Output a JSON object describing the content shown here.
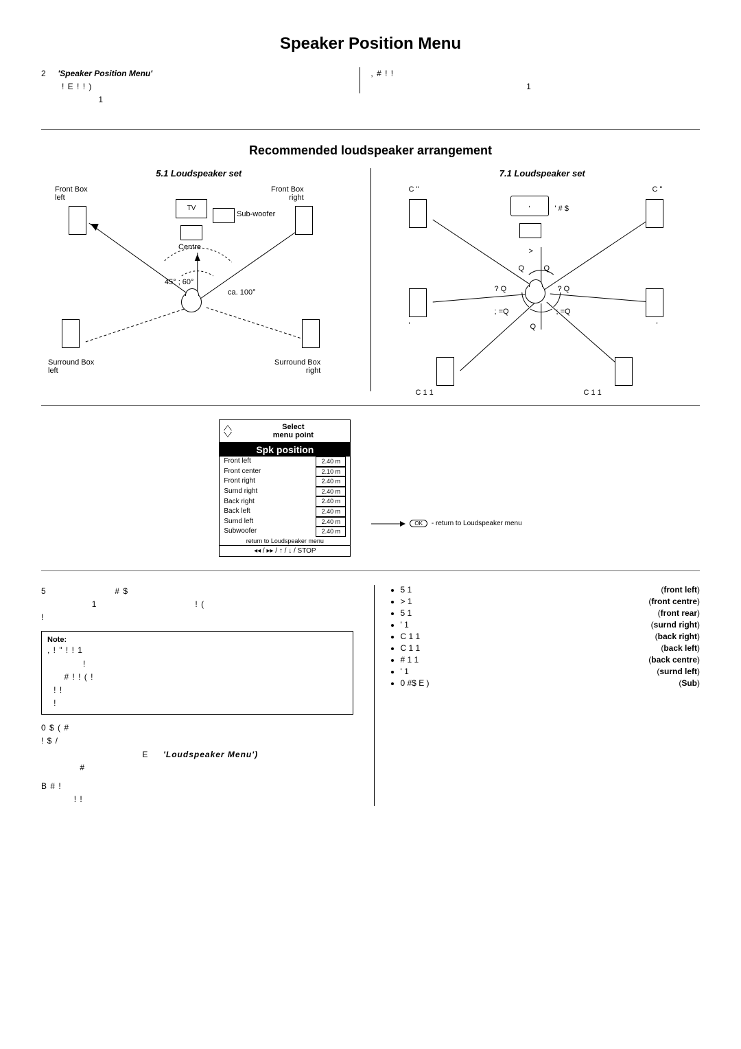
{
  "page_title": "Speaker Position Menu",
  "intro": {
    "left_line1_num": "2",
    "left_line1_bold": "'Speaker  Position  Menu'",
    "left_line2": "!                               E        !        !        )",
    "left_line3": "1",
    "right_line1": ",          #                              !                    !",
    "right_line2": "1"
  },
  "section2_title": "Recommended loudspeaker arrangement",
  "set51": {
    "title": "5.1 Loudspeaker set",
    "labels": {
      "fl": "Front Box\nleft",
      "fr": "Front Box\nright",
      "tv": "TV",
      "sub": "Sub-woofer",
      "centre": "Centre",
      "ang_inner": "45°  ;  60°",
      "ang_outer": "ca. 100°",
      "sl": "Surround Box\nleft",
      "sr": "Surround Box\nright"
    }
  },
  "set71": {
    "title": "7.1 Loudspeaker set",
    "labels": {
      "c_quote_l": "C  \"",
      "c_quote_r": "C  \"",
      "hash_dollar": "'      # $",
      "gt": ">",
      "q": "Q",
      "qq": "?  Q",
      "semi_eq": ";  =Q",
      "c1_1_l": "C    1        1",
      "c1_1_r": "C    1        1"
    }
  },
  "menu_mock": {
    "hdr_text": "Select\nmenu point",
    "title": "Spk position",
    "rows": [
      {
        "label": "Front left",
        "val": "2.40 m"
      },
      {
        "label": "Front center",
        "val": "2.10 m"
      },
      {
        "label": "Front right",
        "val": "2.40 m"
      },
      {
        "label": "Surnd right",
        "val": "2.40 m"
      },
      {
        "label": "Back right",
        "val": "2.40 m"
      },
      {
        "label": "Back left",
        "val": "2.40 m"
      },
      {
        "label": "Surnd left",
        "val": "2.40 m"
      },
      {
        "label": "Subwoofer",
        "val": "2.40 m"
      }
    ],
    "return_text": "return to Loudspeaker menu",
    "footer": "◂◂  /  ▸▸  /  ↑  /  ↓  /  STOP",
    "ok_label": "OK",
    "ok_text": "- return to Loudspeaker menu"
  },
  "bottom_left": {
    "l1_a": "5",
    "l1_b": "#  $",
    "l2_a": "1",
    "l2_b": "!  (",
    "l3": "!",
    "note_title": "Note:",
    "note_l1": ",     !   \" !    !                                   1",
    "note_l2": "!",
    "note_l3": "#        !  !         (                       !",
    "note_l4": "!                  !",
    "note_l5": "!",
    "p2_l1": "0                        $  (                         #",
    "p2_l2": "!                                          $           /",
    "p2_l3_a": "E",
    "p2_l3_b": "'Loudspeaker Menu')",
    "p2_l4": "#",
    "p3_l1": "B                #                         !",
    "p3_l2": "!               !"
  },
  "bottom_right": {
    "items": [
      {
        "pre": "5                    1",
        "tag": "(front left)"
      },
      {
        "pre": ">                      1",
        "tag": "(front centre)"
      },
      {
        "pre": "5                    1",
        "tag": "(front rear)"
      },
      {
        "pre": "'                          1",
        "tag": "(surnd right)"
      },
      {
        "pre": "C    1            1",
        "tag": "(back right)"
      },
      {
        "pre": "C    1            1",
        "tag": "(back left)"
      },
      {
        "pre": "# 1              1",
        "tag": "(back centre)"
      },
      {
        "pre": "'                          1",
        "tag": "(surnd left)"
      },
      {
        "pre": "0          #$            E              )",
        "tag": "(Sub)"
      }
    ]
  },
  "colors": {
    "text": "#000000",
    "bg": "#ffffff",
    "divider": "#666666"
  }
}
